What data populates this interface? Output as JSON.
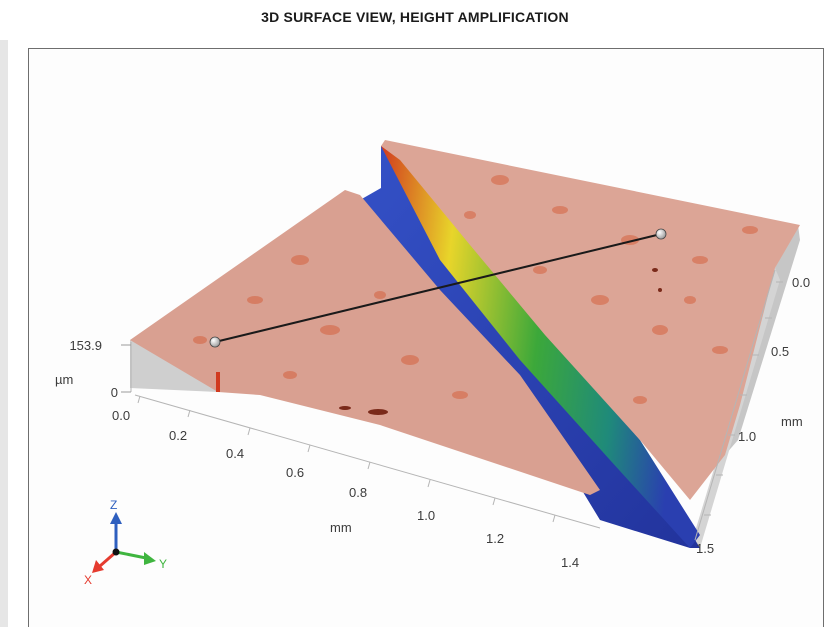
{
  "title": "3D SURFACE VIEW, HEIGHT AMPLIFICATION",
  "colors": {
    "surface": "#d9a091",
    "surface_bump": "#d5623f",
    "groove_wall_red": "#d13a1f",
    "groove_wall_yellow": "#e8d52a",
    "groove_wall_green": "#3ca83a",
    "groove_floor": "#2a3fb0",
    "side_wall": "#c9c9c9",
    "axis_x": "#e53b2f",
    "axis_y": "#3fb53f",
    "axis_z": "#2e5fbf"
  },
  "chart_data": {
    "type": "surface-3d",
    "x_axis": {
      "label": "mm",
      "ticks": [
        "0.0",
        "0.2",
        "0.4",
        "0.6",
        "0.8",
        "1.0",
        "1.2",
        "1.4"
      ],
      "range": [
        0,
        1.5
      ]
    },
    "y_axis": {
      "label": "mm",
      "ticks": [
        "0.0",
        "0.5",
        "1.0",
        "1.5"
      ],
      "range": [
        0,
        1.5
      ]
    },
    "z_axis": {
      "label": "µm",
      "ticks": [
        "0",
        "153.9"
      ],
      "range": [
        0,
        153.9
      ]
    },
    "profile_line": {
      "start_marker": "white-dot",
      "end_marker": "white-dot"
    },
    "orientation_gizmo": {
      "x": "X",
      "y": "Y",
      "z": "Z"
    }
  }
}
